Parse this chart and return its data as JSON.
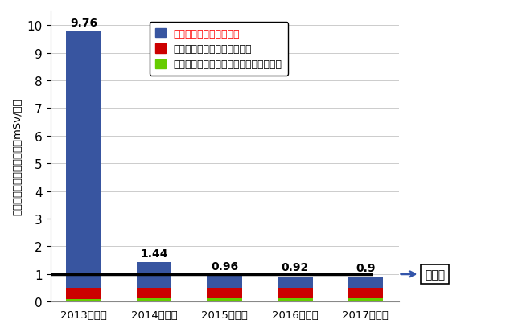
{
  "categories": [
    "2013年度末",
    "2014年度末",
    "2015年度末",
    "2016年度末",
    "2017年度末"
  ],
  "totals": [
    9.76,
    1.44,
    0.96,
    0.92,
    0.9
  ],
  "blue_values": [
    9.26,
    0.94,
    0.46,
    0.42,
    0.4
  ],
  "red_values": [
    0.4,
    0.38,
    0.38,
    0.38,
    0.38
  ],
  "green_values": [
    0.1,
    0.12,
    0.12,
    0.12,
    0.12
  ],
  "blue_color": "#3855A0",
  "red_color": "#CC0000",
  "green_color": "#66CC00",
  "baseline": 1.0,
  "ylim": [
    0,
    10.5
  ],
  "yticks": [
    0,
    1,
    2,
    3,
    4,
    5,
    6,
    7,
    8,
    9,
    10
  ],
  "ylabel": "敘地境界線量「評価値」（mSv/年）",
  "legend_label_blue": "タンクに起因する放射線",
  "legend_label_red": "タンク以外に起因する放射線",
  "legend_label_green": "その他（地下水バイパス・サブドレン等",
  "baseline_label": "基準値",
  "figsize": [
    6.6,
    4.14
  ],
  "dpi": 100
}
